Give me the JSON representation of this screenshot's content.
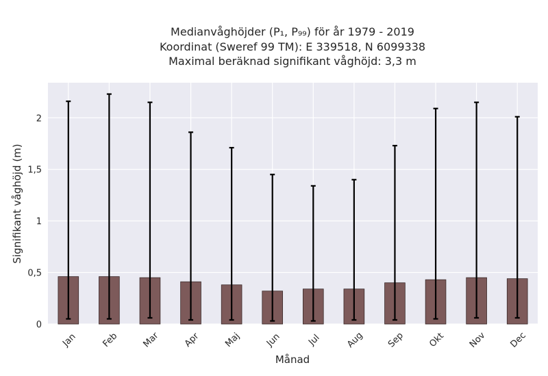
{
  "chart_data": {
    "type": "bar",
    "title_lines": [
      "Medianvåghöjder (P₁, P₉₉) för år 1979 - 2019",
      "Koordinat (Sweref 99 TM): E 339518, N 6099338",
      "Maximal beräknad signifikant våghöjd: 3,3 m"
    ],
    "xlabel": "Månad",
    "ylabel": "Signifikant våghöjd (m)",
    "categories": [
      "Jan",
      "Feb",
      "Mar",
      "Apr",
      "Maj",
      "Jun",
      "Jul",
      "Aug",
      "Sep",
      "Okt",
      "Nov",
      "Dec"
    ],
    "values": [
      0.46,
      0.46,
      0.45,
      0.41,
      0.38,
      0.32,
      0.34,
      0.34,
      0.4,
      0.43,
      0.45,
      0.44
    ],
    "lower": [
      0.05,
      0.05,
      0.06,
      0.04,
      0.04,
      0.03,
      0.03,
      0.04,
      0.04,
      0.05,
      0.06,
      0.06
    ],
    "upper": [
      2.16,
      2.23,
      2.15,
      1.86,
      1.71,
      1.45,
      1.34,
      1.4,
      1.73,
      2.09,
      2.15,
      2.01
    ],
    "ylim": [
      0,
      2.34
    ],
    "yticks": [
      0,
      0.5,
      1,
      1.5,
      2
    ],
    "ytick_labels": [
      "0",
      "0,5",
      "1",
      "1,5",
      "2"
    ],
    "grid": true,
    "colors": {
      "bar": "#7d5a5a",
      "bar_edge": "#3a2a2a",
      "errorbar": "#000000",
      "plot_background": "#eaeaf2",
      "grid": "#ffffff"
    }
  }
}
